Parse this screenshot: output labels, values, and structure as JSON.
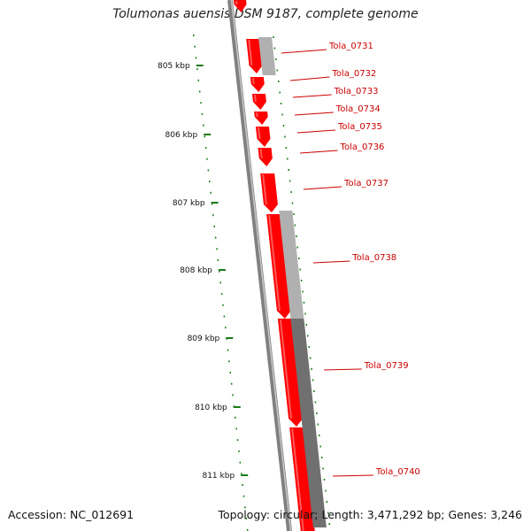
{
  "title": "Tolumonas auensis DSM 9187, complete genome",
  "footer": {
    "accession_label": "Accession:",
    "accession": "NC_012691",
    "topology_label": "Topology:",
    "topology": "circular",
    "length_label": "Length:",
    "length": "3,471,292 bp",
    "genes_label": "Genes:",
    "genes": "3,246"
  },
  "colors": {
    "gene_forward": "#ff0000",
    "gene_other": "#b0b0b0",
    "gene_dark": "#707070",
    "tick": "#1a7a1a",
    "label": "#cc0000",
    "backbone": "#808080"
  },
  "ticks": [
    {
      "label": "805 kbp"
    },
    {
      "label": "806 kbp"
    },
    {
      "label": "807 kbp"
    },
    {
      "label": "808 kbp"
    },
    {
      "label": "809 kbp"
    },
    {
      "label": "810 kbp"
    },
    {
      "label": "811 kbp"
    }
  ],
  "genes": [
    {
      "name": "Tola_0731"
    },
    {
      "name": "Tola_0732"
    },
    {
      "name": "Tola_0733"
    },
    {
      "name": "Tola_0734"
    },
    {
      "name": "Tola_0735"
    },
    {
      "name": "Tola_0736"
    },
    {
      "name": "Tola_0737"
    },
    {
      "name": "Tola_0738"
    },
    {
      "name": "Tola_0739"
    },
    {
      "name": "Tola_0740"
    }
  ]
}
